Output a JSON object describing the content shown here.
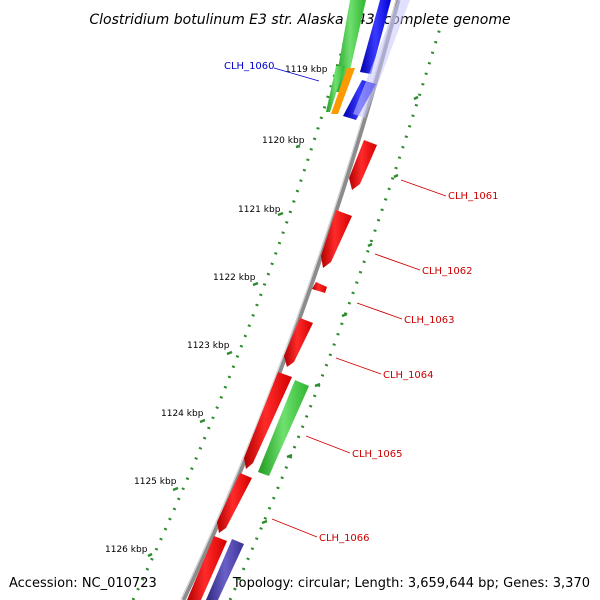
{
  "title": "Clostridium botulinum E3 str. Alaska E43, complete genome",
  "footer": {
    "accession": "Accession: NC_010723",
    "summary": "Topology: circular; Length: 3,659,644 bp; Genes: 3,370"
  },
  "ticks": [
    "1119 kbp",
    "1120 kbp",
    "1121 kbp",
    "1122 kbp",
    "1123 kbp",
    "1124 kbp",
    "1125 kbp",
    "1126 kbp"
  ],
  "genes": [
    {
      "label": "CLH_1060",
      "color": "#0000cc"
    },
    {
      "label": "CLH_1061",
      "color": "#cc0000"
    },
    {
      "label": "CLH_1062",
      "color": "#cc0000"
    },
    {
      "label": "CLH_1063",
      "color": "#cc0000"
    },
    {
      "label": "CLH_1064",
      "color": "#cc0000"
    },
    {
      "label": "CLH_1065",
      "color": "#cc0000"
    },
    {
      "label": "CLH_1066",
      "color": "#cc0000"
    }
  ],
  "colors": {
    "backbone": "#8c8c8c",
    "gc_dots": "#2e8b2e",
    "cds_red": "#ff0000",
    "cds_green": "#33cc33",
    "cds_blue": "#0000ee",
    "cds_orange": "#ff9900",
    "cds_purple": "#4a3fa0"
  }
}
